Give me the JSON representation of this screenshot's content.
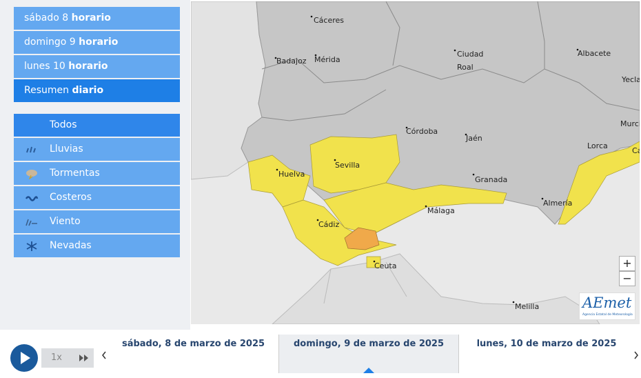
{
  "sidebar": {
    "days": [
      {
        "text": "sábado 8",
        "bold": "horario"
      },
      {
        "text": "domingo 9",
        "bold": "horario"
      },
      {
        "text": "lunes 10",
        "bold": "horario"
      }
    ],
    "summary": {
      "text": "Resumen",
      "bold": "diario"
    },
    "filters": [
      "Todos",
      "Lluvias",
      "Tormentas",
      "Costeros",
      "Viento",
      "Nevadas"
    ]
  },
  "map": {
    "labels": {
      "caceres": "Cáceres",
      "badajoz": "Badajoz",
      "merida": "Mérida",
      "ciudad_real": [
        "Ciudad",
        "Roal"
      ],
      "albacete": "Albacete",
      "yecla": "Yecla",
      "murcia": "Murcia",
      "cordoba": "Córdoba",
      "jaen": "Jaén",
      "granada": "Granada",
      "sevilla": "Sevilla",
      "huelva": "Huelva",
      "cadiz": "Cádiz",
      "malaga": "Málaga",
      "almeria": "Almería",
      "lorca": "Lorca",
      "cartagena": "Cartagena",
      "ceuta": "Ceuta",
      "melilla": "Melilla"
    }
  },
  "zoom": {
    "in": "+",
    "out": "−"
  },
  "logo": {
    "name": "AEmet",
    "tagline": "Agencia Estatal de Meteorología"
  },
  "timeline": {
    "speed": "1x",
    "dates": [
      "sábado, 8 de marzo de 2025",
      "domingo, 9 de marzo de 2025",
      "lunes, 10 de marzo de 2025"
    ]
  }
}
